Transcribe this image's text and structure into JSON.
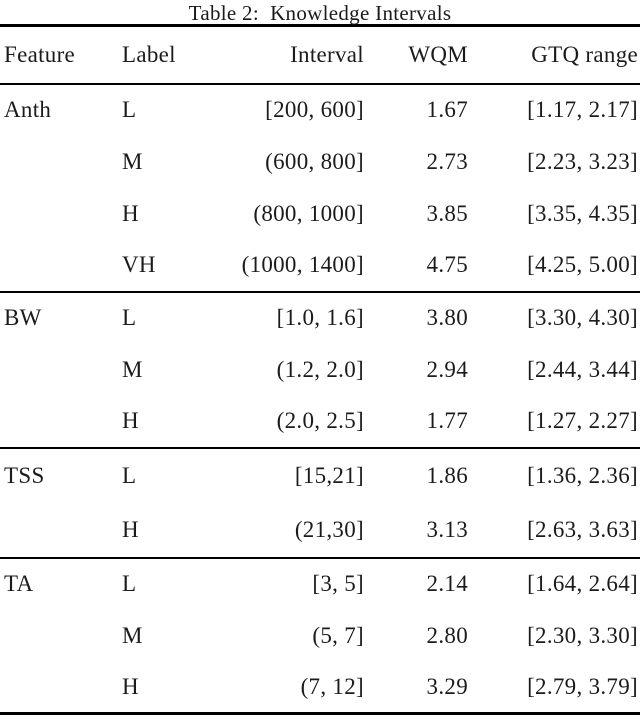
{
  "title": "Table 2:  Knowledge Intervals",
  "table": {
    "columns": [
      "Feature",
      "Label",
      "Interval",
      "WQM",
      "GTQ range"
    ],
    "sections": [
      {
        "feature": "Anth",
        "rows": [
          {
            "label": "L",
            "interval": "[200, 600]",
            "wqm": "1.67",
            "gtq": "[1.17, 2.17]"
          },
          {
            "label": "M",
            "interval": "(600, 800]",
            "wqm": "2.73",
            "gtq": "[2.23, 3.23]"
          },
          {
            "label": "H",
            "interval": "(800, 1000]",
            "wqm": "3.85",
            "gtq": "[3.35, 4.35]"
          },
          {
            "label": "VH",
            "interval": "(1000, 1400]",
            "wqm": "4.75",
            "gtq": "[4.25, 5.00]"
          }
        ]
      },
      {
        "feature": "BW",
        "rows": [
          {
            "label": "L",
            "interval": "[1.0, 1.6]",
            "wqm": "3.80",
            "gtq": "[3.30, 4.30]"
          },
          {
            "label": "M",
            "interval": "(1.2, 2.0]",
            "wqm": "2.94",
            "gtq": "[2.44, 3.44]"
          },
          {
            "label": "H",
            "interval": "(2.0, 2.5]",
            "wqm": "1.77",
            "gtq": "[1.27, 2.27]"
          }
        ]
      },
      {
        "feature": "TSS",
        "rows": [
          {
            "label": "L",
            "interval": "[15,21]",
            "wqm": "1.86",
            "gtq": "[1.36, 2.36]"
          },
          {
            "label": "H",
            "interval": "(21,30]",
            "wqm": "3.13",
            "gtq": "[2.63, 3.63]"
          }
        ]
      },
      {
        "feature": "TA",
        "rows": [
          {
            "label": "L",
            "interval": "[3, 5]",
            "wqm": "2.14",
            "gtq": "[1.64, 2.64]"
          },
          {
            "label": "M",
            "interval": "(5, 7]",
            "wqm": "2.80",
            "gtq": "[2.30, 3.30]"
          },
          {
            "label": "H",
            "interval": "(7, 12]",
            "wqm": "3.29",
            "gtq": "[2.79, 3.79]"
          }
        ]
      }
    ]
  },
  "colors": {
    "background": "#ffffff",
    "text": "#1b1b1b",
    "rule": "#000000"
  }
}
